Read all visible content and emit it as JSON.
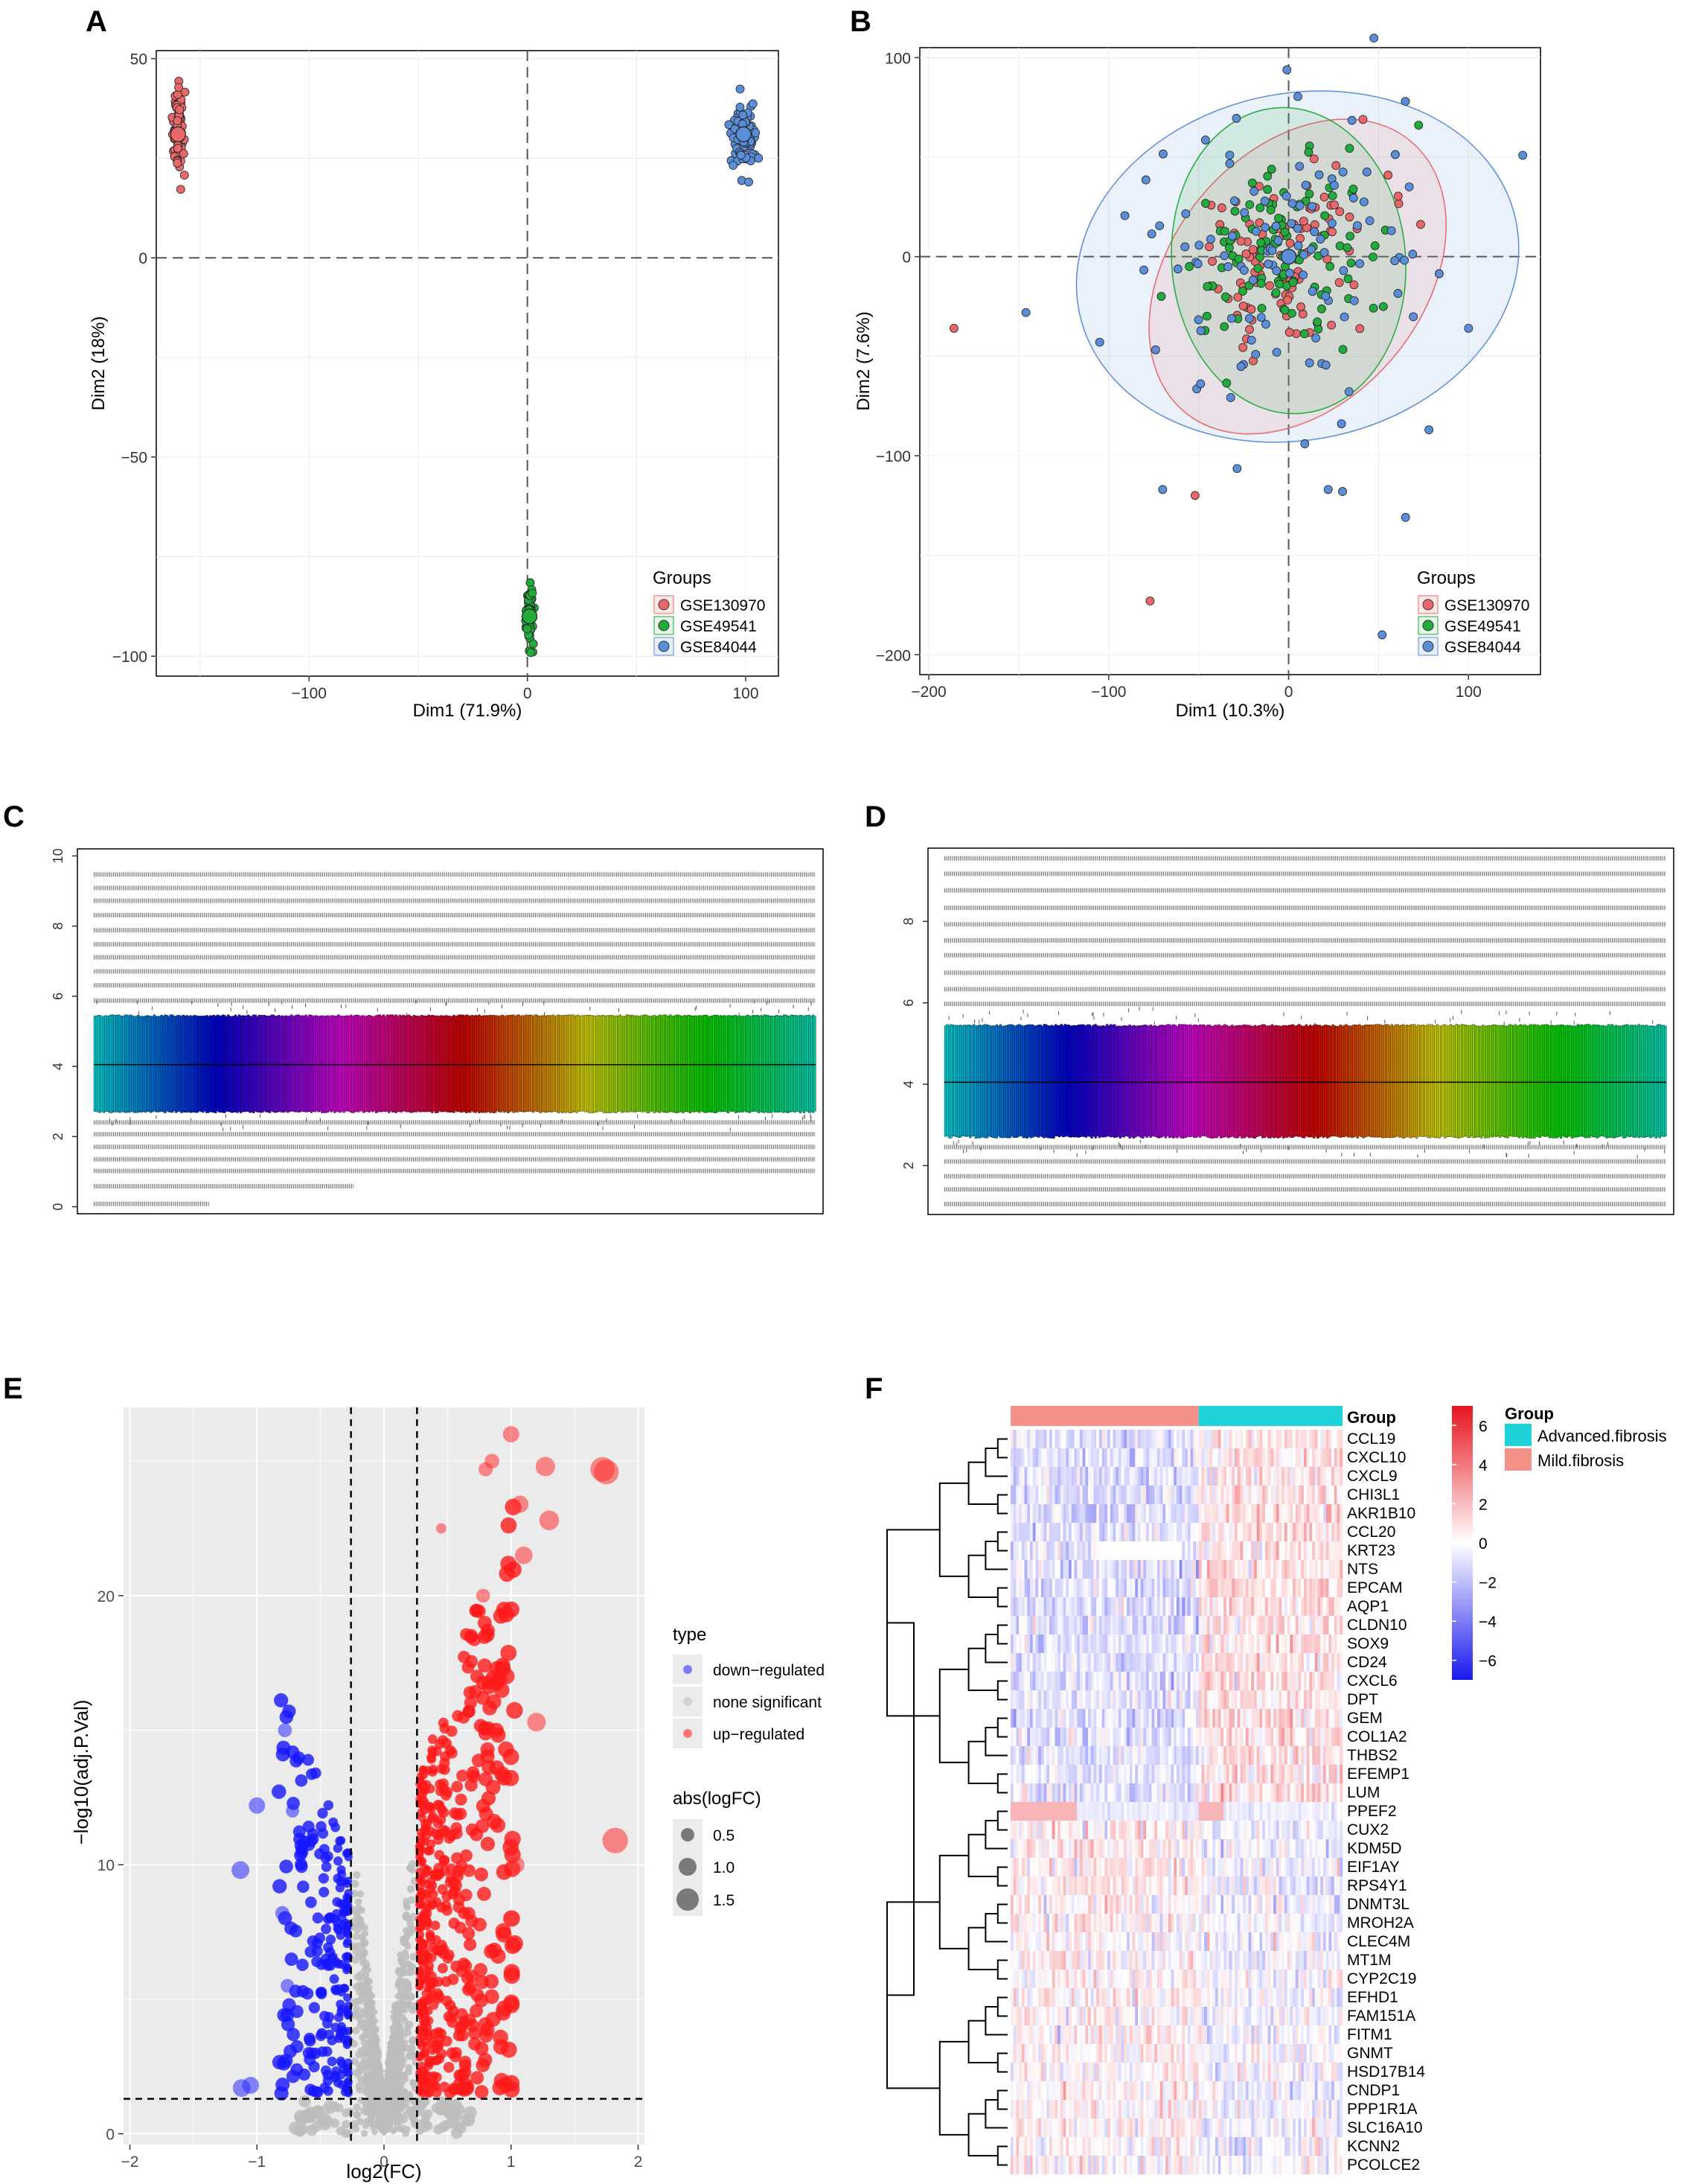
{
  "panels": {
    "A": {
      "letter": "A"
    },
    "B": {
      "letter": "B"
    },
    "C": {
      "letter": "C"
    },
    "D": {
      "letter": "D"
    },
    "E": {
      "letter": "E"
    },
    "F": {
      "letter": "F"
    }
  },
  "colors": {
    "gse130970": "#e8686a",
    "gse49541": "#22aa3c",
    "gse84044": "#5a8ed8",
    "down": "#1f1fff",
    "none": "#bdbdbd",
    "up": "#ff2020",
    "heat_high": "#e8141e",
    "heat_low": "#1a1aee",
    "advanced": "#1fd3d8",
    "mild": "#f4928a",
    "panel_bg_e": "#ebebeb"
  },
  "chart_data": [
    {
      "id": "A",
      "type": "scatter",
      "xlabel": "Dim1 (71.9%)",
      "ylabel": "Dim2 (18%)",
      "xlim": [
        -170,
        115
      ],
      "ylim": [
        -105,
        52
      ],
      "xticks": [
        {
          "v": -100,
          "label": "−100"
        },
        {
          "v": 0,
          "label": "0"
        },
        {
          "v": 100,
          "label": "100"
        }
      ],
      "yticks": [
        {
          "v": 50,
          "label": "50"
        },
        {
          "v": 0,
          "label": "0"
        },
        {
          "v": -50,
          "label": "−50"
        },
        {
          "v": -100,
          "label": "−100"
        }
      ],
      "legend_title": "Groups",
      "legend": [
        "GSE130970",
        "GSE49541",
        "GSE84044"
      ],
      "clusters": [
        {
          "name": "GSE130970",
          "cx": -160,
          "cy": 31,
          "sx": 1.2,
          "sy": 5,
          "n": 75
        },
        {
          "name": "GSE49541",
          "cx": 1,
          "cy": -90,
          "sx": 0.8,
          "sy": 3.5,
          "n": 70
        },
        {
          "name": "GSE84044",
          "cx": 99,
          "cy": 31,
          "sx": 2.5,
          "sy": 4,
          "n": 110
        }
      ]
    },
    {
      "id": "B",
      "type": "scatter",
      "xlabel": "Dim1 (10.3%)",
      "ylabel": "Dim2 (7.6%)",
      "xlim": [
        -205,
        140
      ],
      "ylim": [
        -210,
        105
      ],
      "xticks": [
        {
          "v": -200,
          "label": "−200"
        },
        {
          "v": -100,
          "label": "−100"
        },
        {
          "v": 0,
          "label": "0"
        },
        {
          "v": 100,
          "label": "100"
        }
      ],
      "yticks": [
        {
          "v": 100,
          "label": "100"
        },
        {
          "v": 0,
          "label": "0"
        },
        {
          "v": -100,
          "label": "−100"
        },
        {
          "v": -200,
          "label": "−200"
        }
      ],
      "legend_title": "Groups",
      "legend": [
        "GSE130970",
        "GSE49541",
        "GSE84044"
      ],
      "ellipses": [
        {
          "name": "GSE84044",
          "cx": 5,
          "cy": -5,
          "rx": 124,
          "ry": 87,
          "angle": -12
        },
        {
          "name": "GSE130970",
          "cx": 5,
          "cy": -10,
          "rx": 98,
          "ry": 63,
          "angle": -50
        },
        {
          "name": "GSE49541",
          "cx": 0,
          "cy": -2,
          "rx": 65,
          "ry": 77,
          "angle": -5
        }
      ],
      "clusters": [
        {
          "name": "GSE130970",
          "cx": 0,
          "cy": 0,
          "sx": 25,
          "sy": 24,
          "n": 100
        },
        {
          "name": "GSE49541",
          "cx": 0,
          "cy": 0,
          "sx": 25,
          "sy": 26,
          "n": 110
        },
        {
          "name": "GSE84044",
          "cx": 0,
          "cy": 0,
          "sx": 45,
          "sy": 35,
          "n": 110
        }
      ],
      "outliers": [
        {
          "name": "GSE130970",
          "x": -186,
          "y": -36
        },
        {
          "name": "GSE130970",
          "x": -52,
          "y": -120
        },
        {
          "name": "GSE130970",
          "x": -77,
          "y": -173
        },
        {
          "name": "GSE84044",
          "x": -70,
          "y": -117
        },
        {
          "name": "GSE84044",
          "x": 22,
          "y": -117
        },
        {
          "name": "GSE84044",
          "x": 30,
          "y": -118
        },
        {
          "name": "GSE84044",
          "x": 65,
          "y": -131
        },
        {
          "name": "GSE84044",
          "x": 52,
          "y": -190
        },
        {
          "name": "GSE84044",
          "x": 78,
          "y": -87
        },
        {
          "name": "GSE84044",
          "x": 9,
          "y": -94
        },
        {
          "name": "GSE84044",
          "x": 100,
          "y": -36
        },
        {
          "name": "GSE84044",
          "x": -105,
          "y": -43
        }
      ]
    },
    {
      "id": "C",
      "type": "boxplot",
      "ylim": [
        -0.2,
        10.2
      ],
      "yticks": [
        0,
        2,
        4,
        6,
        8,
        10
      ],
      "n_samples": 400,
      "box": {
        "q1": 2.7,
        "median": 4.05,
        "q3": 5.45
      }
    },
    {
      "id": "D",
      "type": "boxplot",
      "ylim": [
        0.8,
        9.8
      ],
      "yticks": [
        2,
        4,
        6,
        8
      ],
      "n_samples": 380,
      "box": {
        "q1": 2.7,
        "median": 4.05,
        "q3": 5.45
      }
    },
    {
      "id": "E",
      "type": "scatter",
      "xlabel": "log2(FC)",
      "ylabel": "−log10(adj.P.Val)",
      "xlim": [
        -2.05,
        2.05
      ],
      "ylim": [
        -0.4,
        27
      ],
      "xticks": [
        {
          "v": -2,
          "label": "−2"
        },
        {
          "v": -1,
          "label": "−1"
        },
        {
          "v": 0,
          "label": "0"
        },
        {
          "v": 1,
          "label": "1"
        },
        {
          "v": 2,
          "label": "2"
        }
      ],
      "yticks": [
        {
          "v": 0,
          "label": "0"
        },
        {
          "v": 10,
          "label": "10"
        },
        {
          "v": 20,
          "label": "20"
        }
      ],
      "fc_cutoff": 0.26,
      "p_cutoff": 1.3,
      "legend_type_title": "type",
      "legend_type": [
        "down−regulated",
        "none significant",
        "up−regulated"
      ],
      "legend_size_title": "abs(logFC)",
      "legend_size": [
        "0.5",
        "1.0",
        "1.5"
      ],
      "extreme_points": [
        {
          "x": 1.0,
          "y": 26.0
        },
        {
          "x": 0.85,
          "y": 25.0
        },
        {
          "x": 0.8,
          "y": 24.7
        },
        {
          "x": 1.27,
          "y": 24.8
        },
        {
          "x": 1.72,
          "y": 24.7
        },
        {
          "x": 1.75,
          "y": 24.6
        },
        {
          "x": 1.3,
          "y": 22.8
        },
        {
          "x": 1.07,
          "y": 23.4
        },
        {
          "x": 1.1,
          "y": 21.5
        },
        {
          "x": 0.45,
          "y": 22.5
        },
        {
          "x": 0.78,
          "y": 20.0
        },
        {
          "x": 1.82,
          "y": 10.9
        },
        {
          "x": 1.2,
          "y": 15.3
        },
        {
          "x": 1.04,
          "y": 10.0
        },
        {
          "x": 1.0,
          "y": 8.0
        },
        {
          "x": -1.12,
          "y": 1.7
        },
        {
          "x": -1.05,
          "y": 1.8
        },
        {
          "x": -1.13,
          "y": 9.8
        },
        {
          "x": -1.0,
          "y": 12.2
        },
        {
          "x": -0.78,
          "y": 15.0
        },
        {
          "x": -0.72,
          "y": 12.0
        },
        {
          "x": -0.76,
          "y": 5.5
        },
        {
          "x": -0.8,
          "y": 8.2
        }
      ]
    },
    {
      "id": "F",
      "type": "heatmap",
      "genes": [
        "CCL19",
        "CXCL10",
        "CXCL9",
        "CHI3L1",
        "AKR1B10",
        "CCL20",
        "KRT23",
        "NTS",
        "EPCAM",
        "AQP1",
        "CLDN10",
        "SOX9",
        "CD24",
        "CXCL6",
        "DPT",
        "GEM",
        "COL1A2",
        "THBS2",
        "EFEMP1",
        "LUM",
        "PPEF2",
        "CUX2",
        "KDM5D",
        "EIF1AY",
        "RPS4Y1",
        "DNMT3L",
        "MROH2A",
        "CLEC4M",
        "MT1M",
        "CYP2C19",
        "EFHD1",
        "FAM151A",
        "FITM1",
        "GNMT",
        "HSD17B14",
        "CNDP1",
        "PPP1R1A",
        "SLC16A10",
        "KCNN2",
        "PCOLCE2"
      ],
      "groups": {
        "mild_fraction": 0.57
      },
      "annotation_label": "Group",
      "legend_group_title": "Group",
      "legend_groups": [
        "Advanced.fibrosis",
        "Mild.fibrosis"
      ],
      "scale": [
        {
          "v": 6,
          "label": "6"
        },
        {
          "v": 4,
          "label": "4"
        },
        {
          "v": 2,
          "label": "2"
        },
        {
          "v": 0,
          "label": "0"
        },
        {
          "v": -2,
          "label": "−2"
        },
        {
          "v": -4,
          "label": "−4"
        },
        {
          "v": -6,
          "label": "−6"
        }
      ],
      "scale_range": [
        -7,
        7
      ],
      "n_samples": 120
    }
  ]
}
